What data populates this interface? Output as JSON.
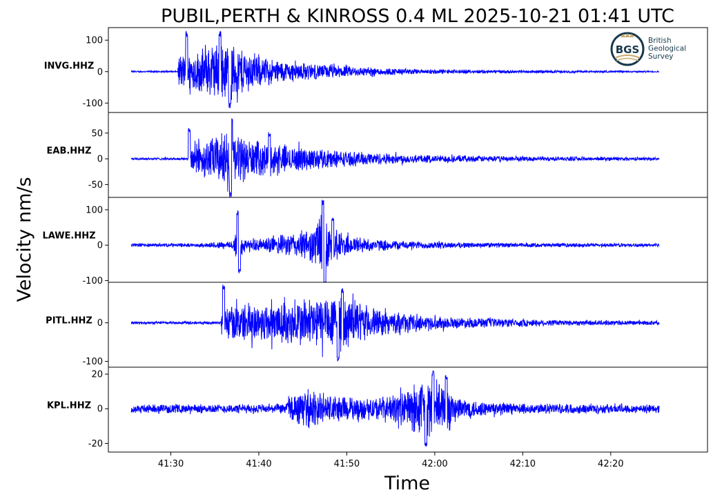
{
  "chart_data": {
    "type": "line",
    "title": "PUBIL,PERTH & KINROSS 0.4 ML   2025-10-21 01:41 UTC",
    "ylabel": "Velocity nm/s",
    "xlabel": "Time",
    "x_ticks": [
      "41:30",
      "41:40",
      "41:50",
      "42:00",
      "42:10",
      "42:20"
    ],
    "x_tick_seconds": [
      90,
      100,
      110,
      120,
      130,
      140
    ],
    "xlim_seconds": [
      82.9,
      151.0
    ],
    "trace_start_seconds": 85.5,
    "trace_end_seconds": 145.5,
    "line_color": "#0000ff",
    "grid": false,
    "logo": {
      "mark": "BGS",
      "text_lines": [
        "British",
        "Geological",
        "Survey"
      ],
      "ring_color": "#17384b",
      "accent_color": "#c9a86b"
    },
    "series": [
      {
        "name": "INVG.HHZ",
        "ylim": [
          -130,
          140
        ],
        "y_ticks": [
          100,
          0,
          -100
        ],
        "y_tick_labels": [
          "100",
          "0",
          "-100"
        ],
        "noise": 1.5,
        "peak_amplitude": 130,
        "envelope": [
          [
            85.5,
            0.02
          ],
          [
            90.8,
            0.02
          ],
          [
            90.9,
            0.5
          ],
          [
            91.5,
            0.45
          ],
          [
            93,
            0.55
          ],
          [
            95,
            0.75
          ],
          [
            96.5,
            0.8
          ],
          [
            98,
            0.65
          ],
          [
            100,
            0.4
          ],
          [
            103,
            0.28
          ],
          [
            107,
            0.2
          ],
          [
            112,
            0.12
          ],
          [
            118,
            0.07
          ],
          [
            124,
            0.05
          ],
          [
            130,
            0.04
          ],
          [
            137,
            0.03
          ],
          [
            145.5,
            0.02
          ]
        ],
        "spikes": [
          [
            91.8,
            1.0
          ],
          [
            95.6,
            1.0
          ],
          [
            96.7,
            -0.9
          ]
        ]
      },
      {
        "name": "EAB.HHZ",
        "ylim": [
          -75,
          90
        ],
        "y_ticks": [
          50,
          0,
          -50
        ],
        "y_tick_labels": [
          "50",
          "0",
          "-50"
        ],
        "noise": 1.2,
        "peak_amplitude": 80,
        "envelope": [
          [
            85.5,
            0.03
          ],
          [
            92.0,
            0.03
          ],
          [
            92.1,
            0.45
          ],
          [
            94,
            0.5
          ],
          [
            96,
            0.7
          ],
          [
            97,
            0.75
          ],
          [
            99,
            0.5
          ],
          [
            102,
            0.38
          ],
          [
            106,
            0.3
          ],
          [
            110,
            0.2
          ],
          [
            115,
            0.14
          ],
          [
            120,
            0.1
          ],
          [
            126,
            0.08
          ],
          [
            132,
            0.06
          ],
          [
            140,
            0.05
          ],
          [
            145.5,
            0.04
          ]
        ],
        "spikes": [
          [
            92.1,
            0.75
          ],
          [
            96.9,
            1.0
          ],
          [
            96.8,
            -0.95
          ],
          [
            101.2,
            0.65
          ]
        ]
      },
      {
        "name": "LAWE.HHZ",
        "ylim": [
          -105,
          135
        ],
        "y_ticks": [
          100,
          0,
          -100
        ],
        "y_tick_labels": [
          "100",
          "0",
          "-100"
        ],
        "noise": 3.0,
        "peak_amplitude": 130,
        "envelope": [
          [
            85.5,
            0.04
          ],
          [
            93,
            0.04
          ],
          [
            95.5,
            0.08
          ],
          [
            97,
            0.1
          ],
          [
            97.5,
            0.45
          ],
          [
            98.5,
            0.12
          ],
          [
            100,
            0.15
          ],
          [
            102,
            0.22
          ],
          [
            104,
            0.3
          ],
          [
            106,
            0.4
          ],
          [
            107,
            0.8
          ],
          [
            108,
            0.45
          ],
          [
            110,
            0.25
          ],
          [
            113,
            0.14
          ],
          [
            117,
            0.1
          ],
          [
            122,
            0.07
          ],
          [
            130,
            0.05
          ],
          [
            145.5,
            0.04
          ]
        ],
        "spikes": [
          [
            97.6,
            0.75
          ],
          [
            97.8,
            -0.6
          ],
          [
            107.3,
            1.0
          ],
          [
            107.5,
            -1.0
          ],
          [
            108.4,
            0.6
          ]
        ]
      },
      {
        "name": "PITL.HHZ",
        "ylim": [
          -115,
          105
        ],
        "y_ticks": [
          0,
          -100
        ],
        "y_tick_labels": [
          "0",
          "-100"
        ],
        "noise": 3.0,
        "peak_amplitude": 100,
        "envelope": [
          [
            85.5,
            0.04
          ],
          [
            95.7,
            0.04
          ],
          [
            95.8,
            0.5
          ],
          [
            97,
            0.5
          ],
          [
            100,
            0.55
          ],
          [
            104,
            0.65
          ],
          [
            107,
            0.75
          ],
          [
            109,
            0.8
          ],
          [
            111,
            0.6
          ],
          [
            114,
            0.35
          ],
          [
            118,
            0.22
          ],
          [
            122,
            0.16
          ],
          [
            128,
            0.12
          ],
          [
            135,
            0.08
          ],
          [
            145.5,
            0.06
          ]
        ],
        "spikes": [
          [
            96.0,
            1.0
          ],
          [
            109.0,
            -1.0
          ],
          [
            109.5,
            0.9
          ]
        ]
      },
      {
        "name": "KPL.HHZ",
        "ylim": [
          -25,
          24
        ],
        "y_ticks": [
          20,
          0,
          -20
        ],
        "y_tick_labels": [
          "20",
          "0",
          "-20"
        ],
        "noise": 1.8,
        "peak_amplitude": 22,
        "envelope": [
          [
            85.5,
            0.12
          ],
          [
            102,
            0.13
          ],
          [
            103,
            0.15
          ],
          [
            103.5,
            0.45
          ],
          [
            106,
            0.5
          ],
          [
            109,
            0.4
          ],
          [
            111,
            0.3
          ],
          [
            114,
            0.35
          ],
          [
            116,
            0.45
          ],
          [
            118,
            0.75
          ],
          [
            119.5,
            0.9
          ],
          [
            121,
            0.75
          ],
          [
            122.5,
            0.35
          ],
          [
            126,
            0.2
          ],
          [
            131,
            0.15
          ],
          [
            145.5,
            0.12
          ]
        ],
        "spikes": [
          [
            119.0,
            -1.0
          ],
          [
            119.8,
            1.0
          ],
          [
            121.3,
            0.9
          ]
        ]
      }
    ]
  }
}
